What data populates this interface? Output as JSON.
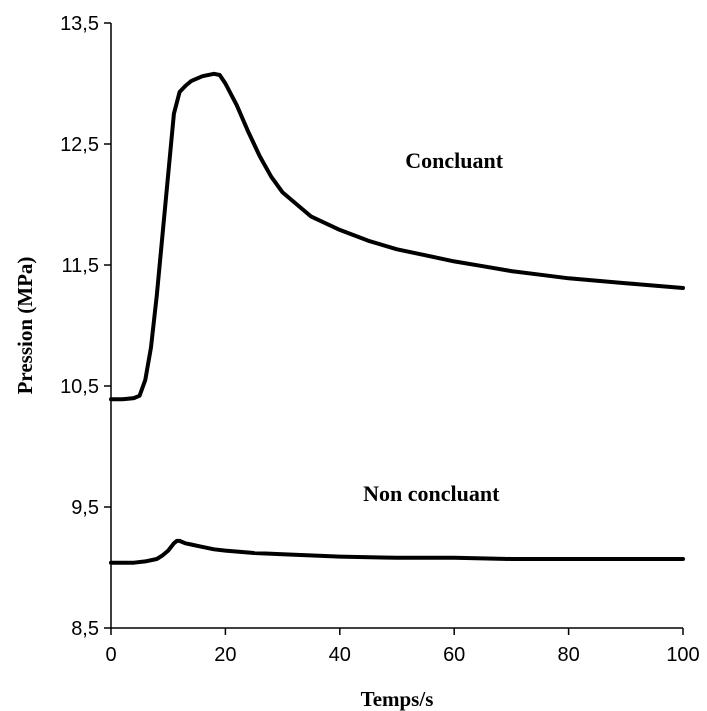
{
  "chart_data": {
    "type": "line",
    "title": "",
    "xlabel": "Temps/s",
    "ylabel": "Pression (MPa)",
    "xlim": [
      0,
      100
    ],
    "ylim": [
      8.5,
      13.5
    ],
    "x_ticks": [
      "0",
      "20",
      "40",
      "60",
      "80",
      "100"
    ],
    "x_tick_values": [
      0,
      20,
      40,
      60,
      80,
      100
    ],
    "y_ticks": [
      "8,5",
      "9,5",
      "10,5",
      "11,5",
      "12,5",
      "13,5"
    ],
    "y_tick_values": [
      8.5,
      9.5,
      10.5,
      11.5,
      12.5,
      13.5
    ],
    "grid": false,
    "legend": "none",
    "line_color": "#000000",
    "series": [
      {
        "name": "Concluant",
        "x": [
          0,
          2,
          4,
          5,
          6,
          7,
          8,
          9,
          10,
          11,
          12,
          13,
          14,
          16,
          18,
          19,
          20,
          22,
          24,
          26,
          28,
          30,
          35,
          40,
          45,
          50,
          55,
          60,
          65,
          70,
          75,
          80,
          85,
          90,
          95,
          100
        ],
        "y": [
          10.39,
          10.39,
          10.4,
          10.42,
          10.55,
          10.82,
          11.25,
          11.75,
          12.25,
          12.75,
          12.93,
          12.98,
          13.02,
          13.06,
          13.08,
          13.07,
          13.0,
          12.82,
          12.6,
          12.4,
          12.23,
          12.1,
          11.9,
          11.79,
          11.7,
          11.63,
          11.58,
          11.53,
          11.49,
          11.45,
          11.42,
          11.39,
          11.37,
          11.35,
          11.33,
          11.31
        ]
      },
      {
        "name": "Non concluant",
        "x": [
          0,
          2,
          4,
          6,
          8,
          9,
          10,
          11,
          11.5,
          12,
          12.5,
          13,
          14,
          16,
          18,
          20,
          25,
          30,
          40,
          50,
          60,
          70,
          80,
          90,
          100
        ],
        "y": [
          9.04,
          9.04,
          9.04,
          9.05,
          9.07,
          9.1,
          9.14,
          9.2,
          9.22,
          9.22,
          9.21,
          9.2,
          9.19,
          9.17,
          9.15,
          9.14,
          9.12,
          9.11,
          9.09,
          9.08,
          9.08,
          9.07,
          9.07,
          9.07,
          9.07
        ]
      }
    ],
    "annotations": [
      {
        "text": "Concluant",
        "series": 0,
        "x": 60,
        "y": 12.3
      },
      {
        "text": "Non concluant",
        "series": 1,
        "x": 56,
        "y": 9.55
      }
    ]
  }
}
